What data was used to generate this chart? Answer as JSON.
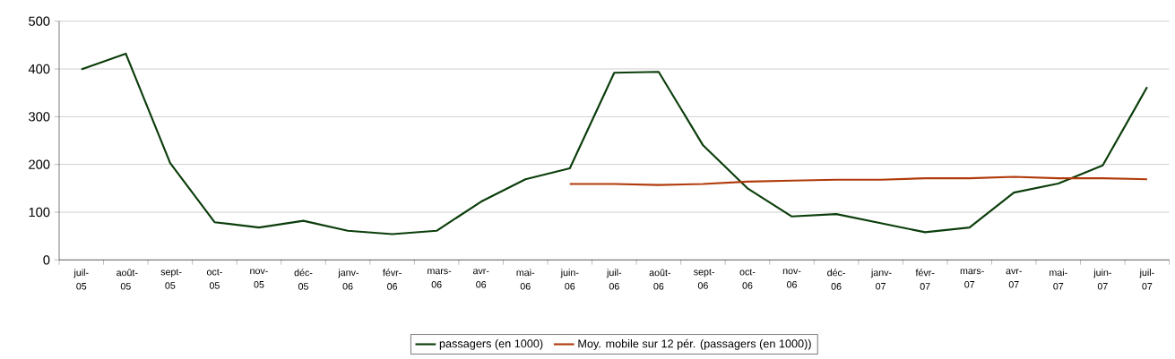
{
  "chart_data": {
    "type": "line",
    "categories": [
      "juil-05",
      "août-05",
      "sept-05",
      "oct-05",
      "nov-05",
      "déc-05",
      "janv-06",
      "févr-06",
      "mars-06",
      "avr-06",
      "mai-06",
      "juin-06",
      "juil-06",
      "août-06",
      "sept-06",
      "oct-06",
      "nov-06",
      "déc-06",
      "janv-07",
      "févr-07",
      "mars-07",
      "avr-07",
      "mai-07",
      "juin-07",
      "juil-07"
    ],
    "series": [
      {
        "name": "passagers (en 1000)",
        "color": "#0b3d0b",
        "values": [
          399,
          432,
          203,
          79,
          68,
          82,
          61,
          54,
          61,
          122,
          169,
          192,
          392,
          394,
          240,
          150,
          91,
          96,
          77,
          58,
          68,
          141,
          160,
          198,
          362
        ]
      },
      {
        "name": "Moy. mobile sur 12 pér. (passagers (en 1000))",
        "color": "#b03a0a",
        "values": [
          null,
          null,
          null,
          null,
          null,
          null,
          null,
          null,
          null,
          null,
          null,
          159,
          159,
          157,
          159,
          164,
          166,
          168,
          168,
          171,
          171,
          174,
          171,
          171,
          169
        ]
      }
    ],
    "ylim": [
      0,
      500
    ],
    "yticks": [
      0,
      100,
      200,
      300,
      400,
      500
    ],
    "grid": "y",
    "legend": "bottom",
    "marker": "none",
    "line_style": "solid"
  }
}
